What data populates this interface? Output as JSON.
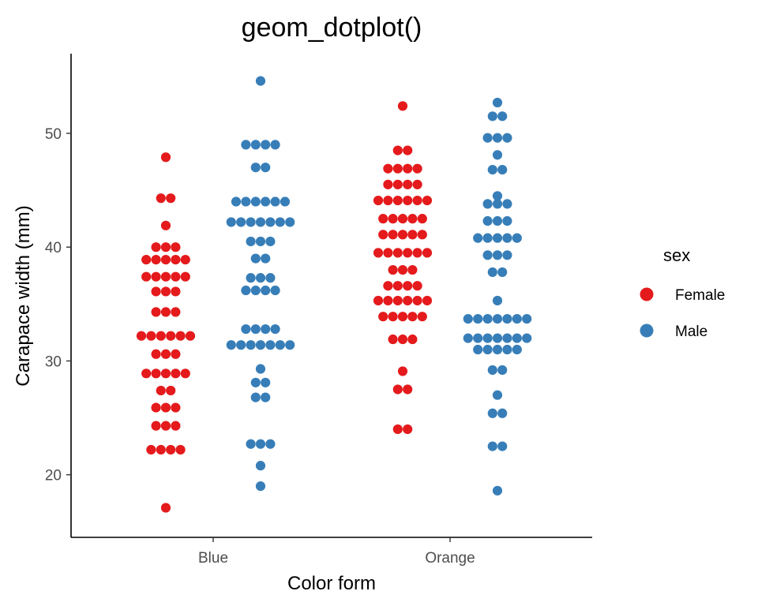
{
  "chart_data": {
    "type": "scatter",
    "subtype": "dotplot",
    "title": "geom_dotplot()",
    "xlabel": "Color form",
    "ylabel": "Carapace width (mm)",
    "categories": [
      "Blue",
      "Orange"
    ],
    "yticks": [
      20,
      30,
      40,
      50
    ],
    "ylim": [
      14.5,
      57.0
    ],
    "grid": false,
    "legend": {
      "title": "sex",
      "position": "right",
      "entries": [
        {
          "label": "Female",
          "color": "#E41A1C"
        },
        {
          "label": "Male",
          "color": "#377EB8"
        }
      ]
    },
    "series": [
      {
        "name": "Female",
        "color": "#E41A1C",
        "groups": [
          {
            "category": "Blue",
            "stacks": [
              {
                "y": 47.9,
                "count": 1
              },
              {
                "y": 44.3,
                "count": 2
              },
              {
                "y": 41.9,
                "count": 1
              },
              {
                "y": 40.0,
                "count": 3
              },
              {
                "y": 38.9,
                "count": 5
              },
              {
                "y": 37.4,
                "count": 5
              },
              {
                "y": 36.1,
                "count": 3
              },
              {
                "y": 34.3,
                "count": 3
              },
              {
                "y": 32.2,
                "count": 6
              },
              {
                "y": 30.6,
                "count": 3
              },
              {
                "y": 28.9,
                "count": 5
              },
              {
                "y": 27.4,
                "count": 2
              },
              {
                "y": 25.9,
                "count": 3
              },
              {
                "y": 24.3,
                "count": 3
              },
              {
                "y": 22.2,
                "count": 4
              },
              {
                "y": 17.1,
                "count": 1
              }
            ]
          },
          {
            "category": "Orange",
            "stacks": [
              {
                "y": 52.4,
                "count": 1
              },
              {
                "y": 48.5,
                "count": 2
              },
              {
                "y": 46.9,
                "count": 4
              },
              {
                "y": 45.5,
                "count": 4
              },
              {
                "y": 44.1,
                "count": 6
              },
              {
                "y": 42.5,
                "count": 5
              },
              {
                "y": 41.1,
                "count": 5
              },
              {
                "y": 39.5,
                "count": 6
              },
              {
                "y": 38.0,
                "count": 3
              },
              {
                "y": 36.6,
                "count": 4
              },
              {
                "y": 35.3,
                "count": 6
              },
              {
                "y": 33.9,
                "count": 5
              },
              {
                "y": 31.9,
                "count": 3
              },
              {
                "y": 29.1,
                "count": 1
              },
              {
                "y": 27.5,
                "count": 2
              },
              {
                "y": 24.0,
                "count": 2
              }
            ]
          }
        ]
      },
      {
        "name": "Male",
        "color": "#377EB8",
        "groups": [
          {
            "category": "Blue",
            "stacks": [
              {
                "y": 54.6,
                "count": 1
              },
              {
                "y": 49.0,
                "count": 4
              },
              {
                "y": 47.0,
                "count": 2
              },
              {
                "y": 44.0,
                "count": 6
              },
              {
                "y": 42.2,
                "count": 7
              },
              {
                "y": 40.5,
                "count": 3
              },
              {
                "y": 39.0,
                "count": 2
              },
              {
                "y": 37.3,
                "count": 3
              },
              {
                "y": 36.2,
                "count": 4
              },
              {
                "y": 32.8,
                "count": 4
              },
              {
                "y": 31.4,
                "count": 7
              },
              {
                "y": 29.3,
                "count": 1
              },
              {
                "y": 28.1,
                "count": 2
              },
              {
                "y": 26.8,
                "count": 2
              },
              {
                "y": 22.7,
                "count": 3
              },
              {
                "y": 20.8,
                "count": 1
              },
              {
                "y": 19.0,
                "count": 1
              }
            ]
          },
          {
            "category": "Orange",
            "stacks": [
              {
                "y": 52.7,
                "count": 1
              },
              {
                "y": 51.5,
                "count": 2
              },
              {
                "y": 49.6,
                "count": 3
              },
              {
                "y": 48.1,
                "count": 1
              },
              {
                "y": 46.8,
                "count": 2
              },
              {
                "y": 44.5,
                "count": 1
              },
              {
                "y": 43.8,
                "count": 3
              },
              {
                "y": 42.3,
                "count": 3
              },
              {
                "y": 40.8,
                "count": 5
              },
              {
                "y": 39.3,
                "count": 3
              },
              {
                "y": 37.8,
                "count": 2
              },
              {
                "y": 35.3,
                "count": 1
              },
              {
                "y": 33.7,
                "count": 7
              },
              {
                "y": 32.0,
                "count": 7
              },
              {
                "y": 31.0,
                "count": 5
              },
              {
                "y": 29.2,
                "count": 2
              },
              {
                "y": 27.0,
                "count": 1
              },
              {
                "y": 25.4,
                "count": 2
              },
              {
                "y": 22.5,
                "count": 2
              },
              {
                "y": 18.6,
                "count": 1
              }
            ]
          }
        ]
      }
    ]
  }
}
